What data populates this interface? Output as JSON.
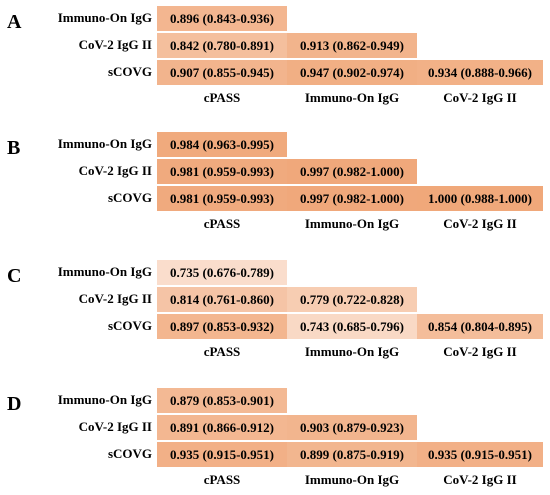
{
  "colors": {
    "scale_low": "#fbe4d6",
    "scale_high": "#f0a87a"
  },
  "panels": [
    {
      "label": "A",
      "rows": [
        {
          "name": "Immuno-On IgG",
          "cells": [
            {
              "text": "0.896 (0.843-0.936)",
              "value": 0.896
            }
          ]
        },
        {
          "name": "CoV-2 IgG II",
          "cells": [
            {
              "text": "0.842 (0.780-0.891)",
              "value": 0.842
            },
            {
              "text": "0.913 (0.862-0.949)",
              "value": 0.913
            }
          ]
        },
        {
          "name": "sCOVG",
          "cells": [
            {
              "text": "0.907 (0.855-0.945)",
              "value": 0.907
            },
            {
              "text": "0.947 (0.902-0.974)",
              "value": 0.947
            },
            {
              "text": "0.934 (0.888-0.966)",
              "value": 0.934
            }
          ]
        }
      ],
      "columns": [
        "cPASS",
        "Immuno-On IgG",
        "CoV-2 IgG II"
      ]
    },
    {
      "label": "B",
      "rows": [
        {
          "name": "Immuno-On IgG",
          "cells": [
            {
              "text": "0.984 (0.963-0.995)",
              "value": 0.984
            }
          ]
        },
        {
          "name": "CoV-2 IgG II",
          "cells": [
            {
              "text": "0.981 (0.959-0.993)",
              "value": 0.981
            },
            {
              "text": "0.997 (0.982-1.000)",
              "value": 0.997
            }
          ]
        },
        {
          "name": "sCOVG",
          "cells": [
            {
              "text": "0.981 (0.959-0.993)",
              "value": 0.981
            },
            {
              "text": "0.997 (0.982-1.000)",
              "value": 0.997
            },
            {
              "text": "1.000 (0.988-1.000)",
              "value": 1.0
            }
          ]
        }
      ],
      "columns": [
        "cPASS",
        "Immuno-On IgG",
        "CoV-2 IgG II"
      ]
    },
    {
      "label": "C",
      "rows": [
        {
          "name": "Immuno-On IgG",
          "cells": [
            {
              "text": "0.735 (0.676-0.789)",
              "value": 0.735
            }
          ]
        },
        {
          "name": "CoV-2 IgG II",
          "cells": [
            {
              "text": "0.814 (0.761-0.860)",
              "value": 0.814
            },
            {
              "text": "0.779 (0.722-0.828)",
              "value": 0.779
            }
          ]
        },
        {
          "name": "sCOVG",
          "cells": [
            {
              "text": "0.897 (0.853-0.932)",
              "value": 0.897
            },
            {
              "text": "0.743 (0.685-0.796)",
              "value": 0.743
            },
            {
              "text": "0.854 (0.804-0.895)",
              "value": 0.854
            }
          ]
        }
      ],
      "columns": [
        "cPASS",
        "Immuno-On IgG",
        "CoV-2 IgG II"
      ]
    },
    {
      "label": "D",
      "rows": [
        {
          "name": "Immuno-On IgG",
          "cells": [
            {
              "text": "0.879 (0.853-0.901)",
              "value": 0.879
            }
          ]
        },
        {
          "name": "CoV-2 IgG II",
          "cells": [
            {
              "text": "0.891 (0.866-0.912)",
              "value": 0.891
            },
            {
              "text": "0.903 (0.879-0.923)",
              "value": 0.903
            }
          ]
        },
        {
          "name": "sCOVG",
          "cells": [
            {
              "text": "0.935 (0.915-0.951)",
              "value": 0.935
            },
            {
              "text": "0.899 (0.875-0.919)",
              "value": 0.899
            },
            {
              "text": "0.935 (0.915-0.951)",
              "value": 0.935
            }
          ]
        }
      ],
      "columns": [
        "cPASS",
        "Immuno-On IgG",
        "CoV-2 IgG II"
      ]
    }
  ]
}
